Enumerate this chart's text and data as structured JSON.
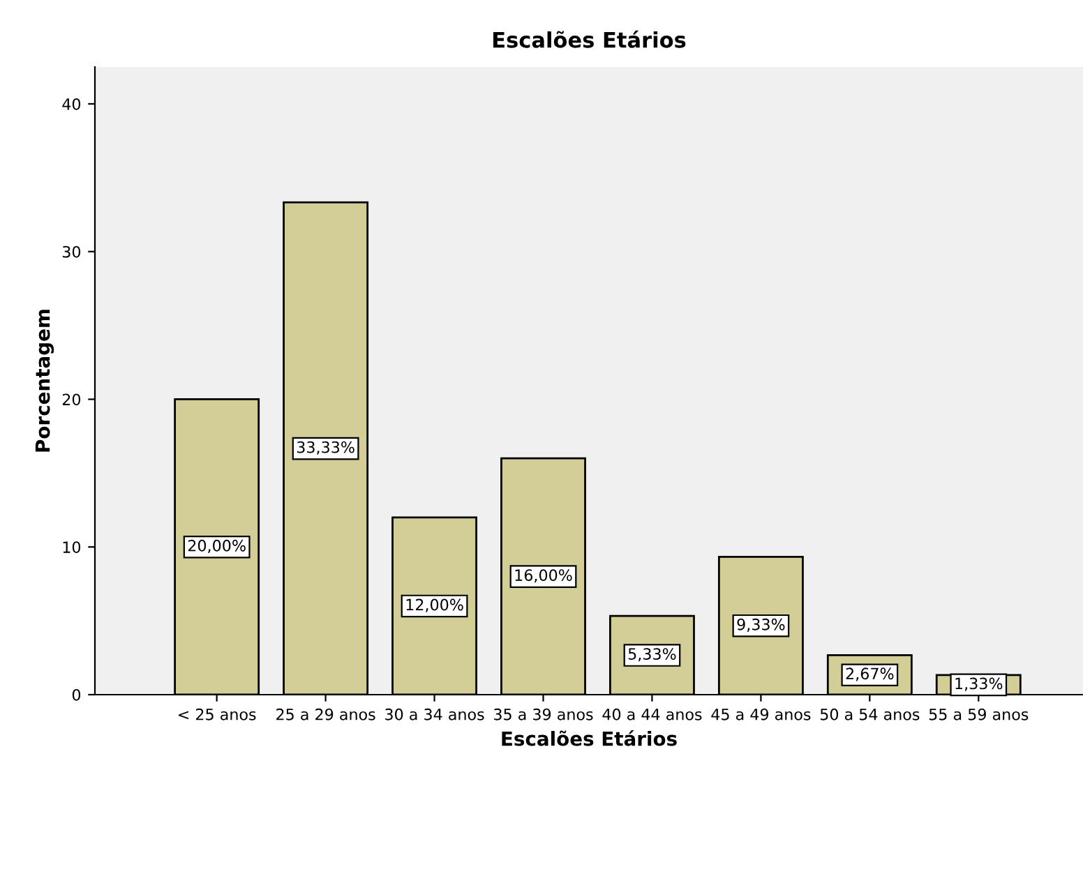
{
  "chart_data": {
    "type": "bar",
    "title": "Escalões Etários",
    "xlabel": "Escalões Etários",
    "ylabel": "Porcentagem",
    "categories": [
      "< 25 anos",
      "25 a 29 anos",
      "30 a 34 anos",
      "35 a 39 anos",
      "40 a 44 anos",
      "45 a 49 anos",
      "50 a 54 anos",
      "55 a 59 anos"
    ],
    "values": [
      20.0,
      33.33,
      12.0,
      16.0,
      5.33,
      9.33,
      2.67,
      1.33
    ],
    "value_labels": [
      "20,00%",
      "33,33%",
      "12,00%",
      "16,00%",
      "5,33%",
      "9,33%",
      "2,67%",
      "1,33%"
    ],
    "color": "#d3ce98",
    "ylim": [
      0,
      42.5
    ],
    "yticks": [
      0,
      10,
      20,
      30,
      40
    ],
    "grid": false
  }
}
